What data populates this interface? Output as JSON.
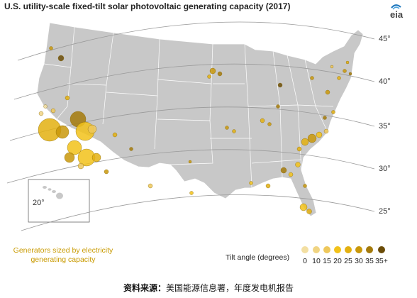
{
  "title": "U.S. utility-scale fixed-tilt solar photovoltaic generating capacity (2017)",
  "logo_text": "eia",
  "latitude_labels": [
    "45°",
    "40°",
    "35°",
    "30°",
    "25°",
    "20°"
  ],
  "size_note": "Generators sized by electricity generating capacity",
  "legend": {
    "title": "Tilt angle (degrees)",
    "labels": [
      "0",
      "10",
      "15",
      "20",
      "25",
      "30",
      "35",
      "35+"
    ],
    "colors": [
      "#f3dfa2",
      "#f0d482",
      "#eec85c",
      "#f2c21a",
      "#e3b010",
      "#c9980a",
      "#a47a0b",
      "#6b4c08"
    ]
  },
  "source": {
    "label": "资料来源：",
    "text": "美国能源信息署，年度发电机报告"
  },
  "colors": {
    "land": "#c8c8c8",
    "border": "#ffffff",
    "latitude_line": "#9a9a9a"
  }
}
